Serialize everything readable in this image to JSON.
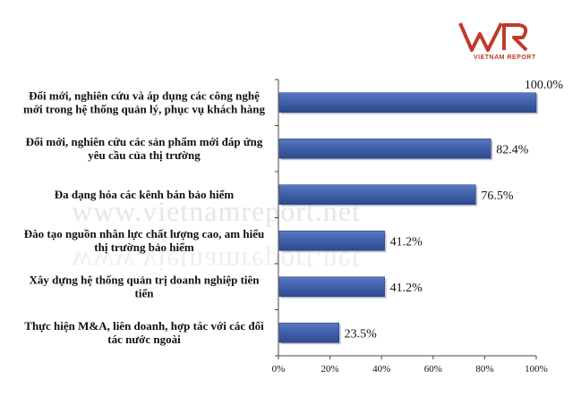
{
  "logo": {
    "mark": "VNR",
    "subtitle": "VIETNAM REPORT"
  },
  "watermark": "www.vietnamreport.net",
  "chart_data": {
    "type": "bar",
    "orientation": "horizontal",
    "categories": [
      [
        "Đổi mới, nghiên cứu và áp dụng các công nghệ",
        "mới trong hệ thống quản lý, phục vụ khách hàng"
      ],
      [
        "Đổi mới, nghiên cứu các sản phẩm mới đáp ứng",
        "yêu cầu của thị trường"
      ],
      [
        "Đa dạng hóa các kênh bán bảo hiểm"
      ],
      [
        "Đào tạo nguồn nhân lực chất lượng cao, am hiểu",
        "thị trường bảo hiểm"
      ],
      [
        "Xây dựng hệ thống quản trị doanh nghiệp tiên",
        "tiến"
      ],
      [
        "Thực hiện M&A, liên doanh, hợp tác với các đối",
        "tác nước ngoài"
      ]
    ],
    "values": [
      100.0,
      82.4,
      76.5,
      41.2,
      41.2,
      23.5
    ],
    "value_labels": [
      "100.0%",
      "82.4%",
      "76.5%",
      "41.2%",
      "41.2%",
      "23.5%"
    ],
    "xlim": [
      0,
      100
    ],
    "x_ticks": [
      "0%",
      "20%",
      "40%",
      "60%",
      "80%",
      "100%"
    ],
    "bar_color": "#3f5fa8",
    "grid": false,
    "legend": "none"
  }
}
